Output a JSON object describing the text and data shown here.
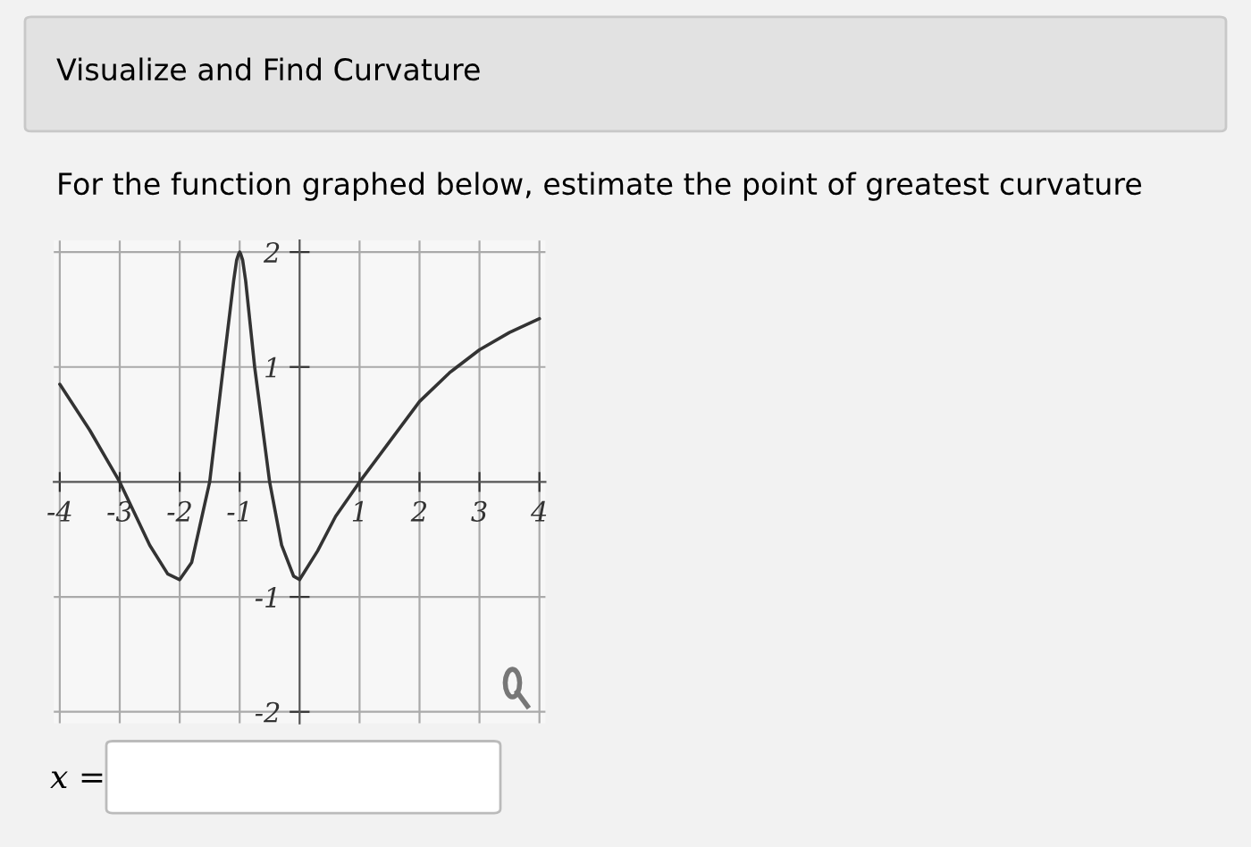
{
  "chart_data": {
    "type": "line",
    "title": "Visualize and Find Curvature",
    "subtitle": "For the function graphed below, estimate the point of greatest curvature",
    "annotations": [
      "x ="
    ],
    "x": [
      -4,
      -3.5,
      -3,
      -2.5,
      -2.2,
      -2,
      -1.8,
      -1.5,
      -1.25,
      -1.1,
      -1.05,
      -1.02,
      -1,
      -0.98,
      -0.95,
      -0.9,
      -0.75,
      -0.5,
      -0.3,
      -0.1,
      0,
      0.3,
      0.6,
      1,
      1.5,
      2,
      2.5,
      3,
      3.5,
      4
    ],
    "series": [
      {
        "color": "#333333",
        "values": [
          0.85,
          0.45,
          0,
          -0.55,
          -0.8,
          -0.85,
          -0.7,
          0,
          1.1,
          1.75,
          1.93,
          1.98,
          2,
          1.98,
          1.93,
          1.75,
          1.0,
          0,
          -0.55,
          -0.82,
          -0.85,
          -0.6,
          -0.3,
          0,
          0.35,
          0.7,
          0.95,
          1.15,
          1.3,
          1.42
        ]
      }
    ],
    "xlim": [
      -4.1,
      4.1
    ],
    "ylim": [
      -2.1,
      2.1
    ],
    "xticks": [
      -4,
      -3,
      -2,
      -1,
      1,
      2,
      3,
      4
    ],
    "yticks": [
      -2,
      -1,
      1,
      2
    ],
    "grid": true,
    "line_style": "solid",
    "marker": "none"
  }
}
